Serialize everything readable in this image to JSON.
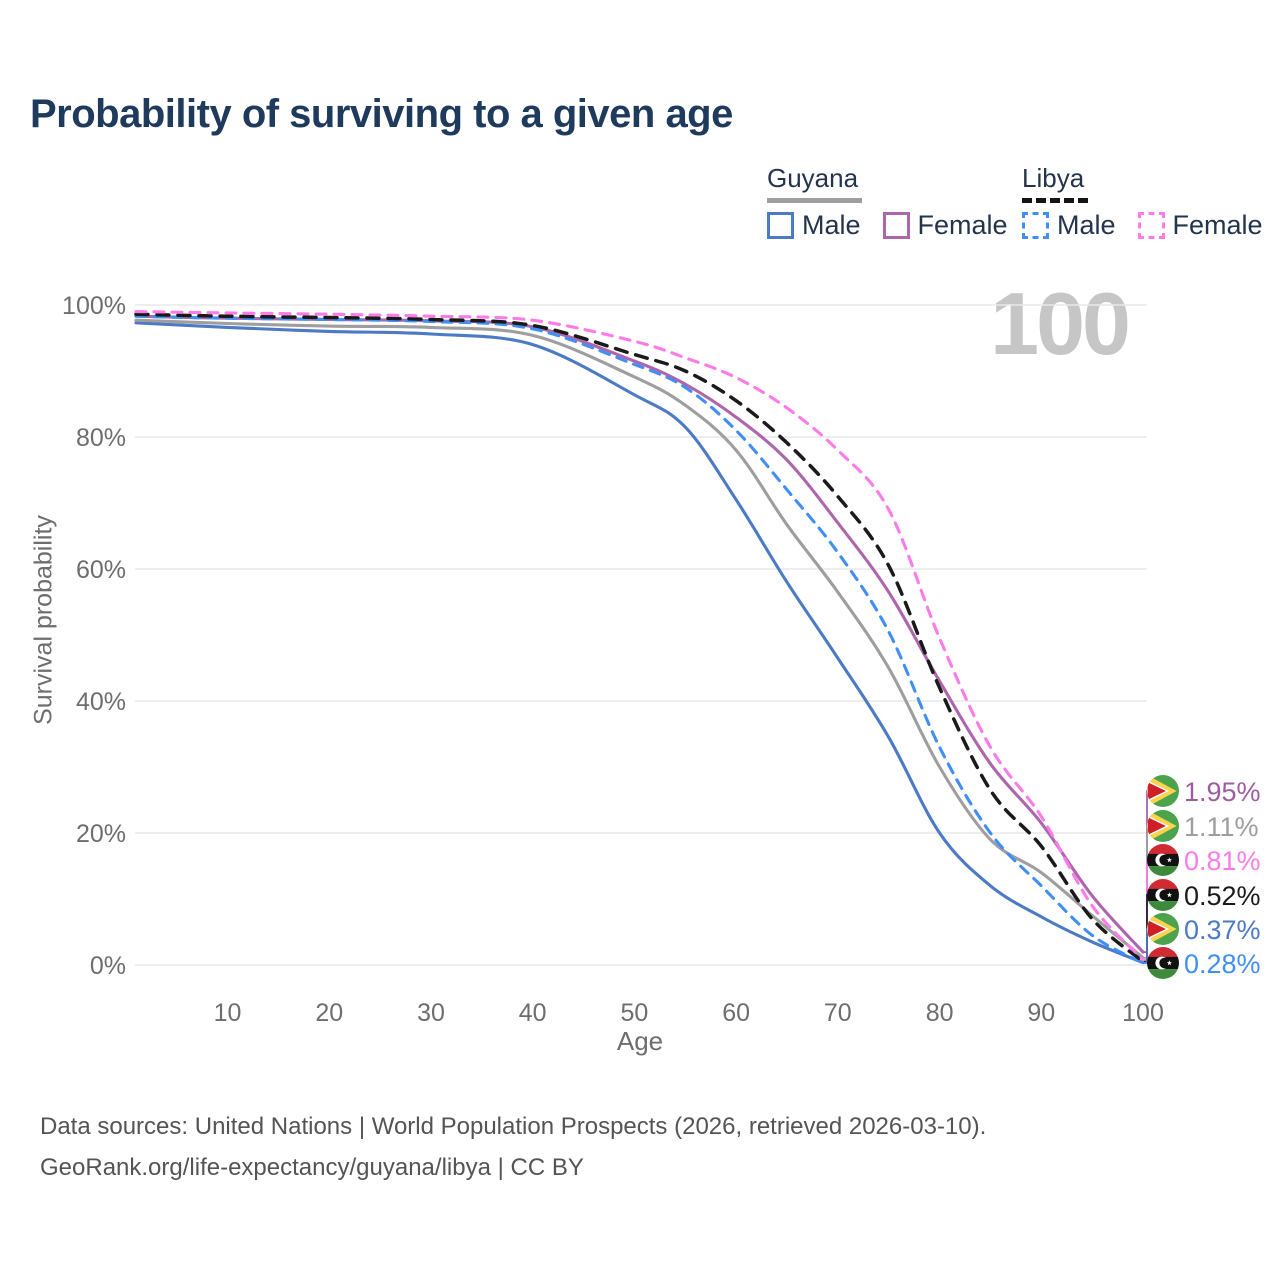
{
  "title": "Probability of surviving to a given age",
  "watermark_age": "100",
  "legend": {
    "guyana": {
      "label": "Guyana",
      "male": "Male",
      "female": "Female"
    },
    "libya": {
      "label": "Libya",
      "male": "Male",
      "female": "Female"
    }
  },
  "footer": {
    "line1": "Data sources: United Nations | World Population Prospects (2026, retrieved 2026-03-10).",
    "line2": "GeoRank.org/life-expectancy/guyana/libya | CC BY"
  },
  "colors": {
    "title_text": "#1e3a5c",
    "axis_text": "#6e6e6e",
    "gridline": "#e9e9e9",
    "watermark": "#c6c6c6",
    "guyana_male": "#4c7ac4",
    "guyana_female": "#ad66ab",
    "guyana_total": "#9e9e9e",
    "libya_male": "#418ff4",
    "libya_female": "#fb7be8",
    "libya_total": "#1a1a1a"
  },
  "chart_data": {
    "type": "line",
    "title": "Probability of surviving to a given age",
    "xlabel": "Age",
    "ylabel": "Survival probability",
    "xlim": [
      1,
      100
    ],
    "ylim": [
      0,
      100
    ],
    "x_ticks": [
      10,
      20,
      30,
      40,
      50,
      60,
      70,
      80,
      90,
      100
    ],
    "y_ticks": [
      0,
      20,
      40,
      60,
      80,
      100
    ],
    "grid": "horizontal",
    "legend_position": "top-right",
    "x": [
      1,
      10,
      20,
      30,
      40,
      50,
      55,
      60,
      65,
      70,
      75,
      80,
      85,
      90,
      95,
      100
    ],
    "series": [
      {
        "id": "guyana-male",
        "name": "Guyana Male",
        "country": "Guyana",
        "sex": "Male",
        "color": "#4c7ac4",
        "style": "solid",
        "end_value_pct": 0.37,
        "y": [
          97.3,
          96.6,
          96.0,
          95.6,
          94.0,
          86.4,
          81.5,
          70.5,
          58.0,
          46.5,
          34.5,
          20.0,
          12.0,
          7.3,
          3.5,
          0.37
        ]
      },
      {
        "id": "guyana-total",
        "name": "Guyana",
        "country": "Guyana",
        "sex": "Both",
        "color": "#9e9e9e",
        "style": "solid",
        "end_value_pct": 1.11,
        "y": [
          97.7,
          97.2,
          96.8,
          96.6,
          95.4,
          89.1,
          84.8,
          78.0,
          66.7,
          56.5,
          45.0,
          30.0,
          19.0,
          14.0,
          7.5,
          1.11
        ]
      },
      {
        "id": "guyana-female",
        "name": "Guyana Female",
        "country": "Guyana",
        "sex": "Female",
        "color": "#ad66ab",
        "style": "solid",
        "end_value_pct": 1.95,
        "y": [
          98.3,
          98.0,
          97.8,
          97.6,
          96.7,
          91.5,
          88.0,
          83.0,
          76.5,
          67.0,
          56.5,
          43.0,
          30.5,
          21.5,
          10.5,
          1.95
        ]
      },
      {
        "id": "libya-male",
        "name": "Libya Male",
        "country": "Libya",
        "sex": "Male",
        "color": "#418ff4",
        "style": "dashed",
        "end_value_pct": 0.28,
        "y": [
          98.3,
          98.0,
          97.8,
          97.5,
          96.4,
          91.0,
          87.5,
          81.0,
          72.0,
          62.5,
          50.5,
          33.0,
          20.0,
          12.0,
          4.5,
          0.28
        ]
      },
      {
        "id": "libya-total",
        "name": "Libya",
        "country": "Libya",
        "sex": "Both",
        "color": "#1a1a1a",
        "style": "dashed",
        "end_value_pct": 0.52,
        "y": [
          98.6,
          98.3,
          98.1,
          97.8,
          96.9,
          92.5,
          90.0,
          85.5,
          79.1,
          71.0,
          60.5,
          42.0,
          26.5,
          18.0,
          7.0,
          0.52
        ]
      },
      {
        "id": "libya-female",
        "name": "Libya Female",
        "country": "Libya",
        "sex": "Female",
        "color": "#fb7be8",
        "style": "dashed",
        "end_value_pct": 0.81,
        "y": [
          99.0,
          98.8,
          98.6,
          98.3,
          97.7,
          94.5,
          92.0,
          89.0,
          84.4,
          78.0,
          69.0,
          49.5,
          33.0,
          22.5,
          9.0,
          0.81
        ]
      }
    ],
    "end_labels": [
      {
        "series": "Guyana Female",
        "flag": "guyana",
        "value": "1.95%",
        "color": "#a05ca0"
      },
      {
        "series": "Guyana",
        "flag": "guyana",
        "value": "1.11%",
        "color": "#9e9e9e"
      },
      {
        "series": "Libya Female",
        "flag": "libya",
        "value": "0.81%",
        "color": "#fb7be8"
      },
      {
        "series": "Libya",
        "flag": "libya",
        "value": "0.52%",
        "color": "#1a1a1a"
      },
      {
        "series": "Guyana Male",
        "flag": "guyana",
        "value": "0.37%",
        "color": "#4c7ac4"
      },
      {
        "series": "Libya Male",
        "flag": "libya",
        "value": "0.28%",
        "color": "#418ff4"
      }
    ]
  }
}
